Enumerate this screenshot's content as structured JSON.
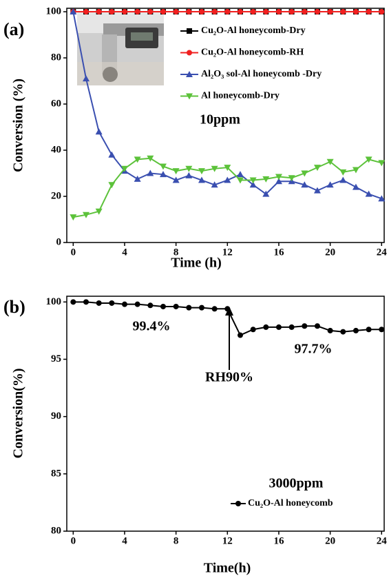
{
  "chart_data": [
    {
      "type": "line",
      "panel_label": "(a)",
      "x_label": "Time (h)",
      "y_label": "Conversion (%)",
      "x": [
        0,
        1,
        2,
        3,
        4,
        5,
        6,
        7,
        8,
        9,
        10,
        11,
        12,
        13,
        14,
        15,
        16,
        17,
        18,
        19,
        20,
        21,
        22,
        23,
        24
      ],
      "xlim": [
        -0.5,
        24.2
      ],
      "xticks": [
        0,
        4,
        8,
        12,
        16,
        20,
        24
      ],
      "ylim": [
        0,
        101.5
      ],
      "yticks": [
        0,
        20,
        40,
        60,
        80,
        100
      ],
      "annotations": [
        "10ppm"
      ],
      "series": [
        {
          "name": "Cu₂O-Al honeycomb-Dry",
          "color": "#000000",
          "marker": "square",
          "values": [
            100,
            100,
            100,
            100,
            100,
            100,
            100,
            100,
            100,
            100,
            100,
            100,
            100,
            100,
            100,
            100,
            100,
            100,
            100,
            100,
            100,
            100,
            100,
            100,
            100
          ]
        },
        {
          "name": "Cu₂O-Al honeycomb-RH",
          "color": "#f02020",
          "marker": "circle",
          "values": [
            100,
            100,
            100,
            100,
            100,
            100,
            100,
            100,
            100,
            100,
            100,
            100,
            100,
            100,
            100,
            100,
            100,
            100,
            100,
            100,
            100,
            100,
            100,
            100,
            100
          ]
        },
        {
          "name": "Al₂O₃ sol-Al honeycomb -Dry",
          "color": "#3a4fb0",
          "marker": "triangle-up",
          "values": [
            100,
            71,
            48,
            38,
            31,
            27.5,
            30,
            29.5,
            27,
            29,
            27,
            25,
            27,
            29.5,
            25,
            21,
            26.5,
            26.5,
            25,
            22.5,
            25,
            27,
            24,
            21,
            19
          ]
        },
        {
          "name": "Al honeycomb-Dry",
          "color": "#5cc23a",
          "marker": "triangle-down",
          "values": [
            11,
            12,
            13.5,
            25,
            32,
            36,
            36.5,
            33,
            31,
            32,
            31,
            32,
            32.5,
            27,
            27,
            27.5,
            28.5,
            28,
            30,
            32.5,
            35,
            30.5,
            31.5,
            36,
            34.5
          ]
        }
      ]
    },
    {
      "type": "line",
      "panel_label": "(b)",
      "x_label": "Time(h)",
      "y_label": "Conversion(%)",
      "x": [
        0,
        1,
        2,
        3,
        4,
        5,
        6,
        7,
        8,
        9,
        10,
        11,
        12,
        13,
        14,
        15,
        16,
        17,
        18,
        19,
        20,
        21,
        22,
        23,
        24
      ],
      "xlim": [
        -0.5,
        24.2
      ],
      "xticks": [
        0,
        4,
        8,
        12,
        16,
        20,
        24
      ],
      "ylim": [
        80,
        100.5
      ],
      "yticks": [
        80,
        85,
        90,
        95,
        100
      ],
      "annotations": [
        "99.4%",
        "97.7%",
        "RH90%",
        "3000ppm"
      ],
      "series": [
        {
          "name": "Cu₂O-Al honeycomb",
          "color": "#000000",
          "marker": "circle",
          "values": [
            100,
            100,
            99.9,
            99.9,
            99.8,
            99.8,
            99.7,
            99.6,
            99.6,
            99.5,
            99.5,
            99.4,
            99.4,
            97.1,
            97.6,
            97.8,
            97.8,
            97.8,
            97.9,
            97.9,
            97.5,
            97.4,
            97.5,
            97.6,
            97.6
          ]
        }
      ]
    }
  ]
}
